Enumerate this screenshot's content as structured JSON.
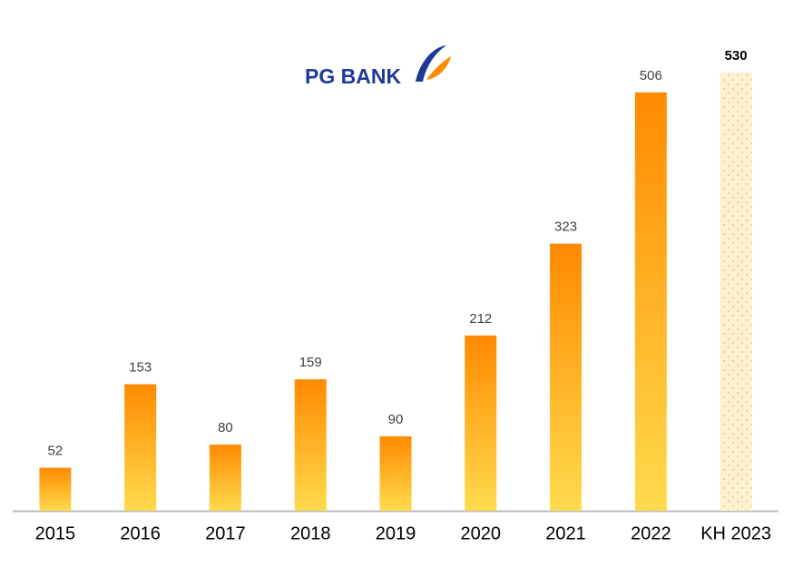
{
  "chart_data": {
    "type": "bar",
    "logo_text": "PG BANK",
    "categories": [
      "2015",
      "2016",
      "2017",
      "2018",
      "2019",
      "2020",
      "2021",
      "2022",
      "KH 2023"
    ],
    "values": [
      52,
      153,
      80,
      159,
      90,
      212,
      323,
      506,
      530
    ],
    "colors": [
      "#ff8a00",
      "#ff8a00",
      "#ff8a00",
      "#ff8a00",
      "#ff8a00",
      "#ff8a00",
      "#ff8a00",
      "#ff8a00",
      "#fdf1cf"
    ],
    "colors_bottom": [
      "#ffdb4d",
      "#ffdb4d",
      "#ffdb4d",
      "#ffdb4d",
      "#ffdb4d",
      "#ffdb4d",
      "#ffdb4d",
      "#ffdb4d",
      "#fdf1cf"
    ]
  }
}
